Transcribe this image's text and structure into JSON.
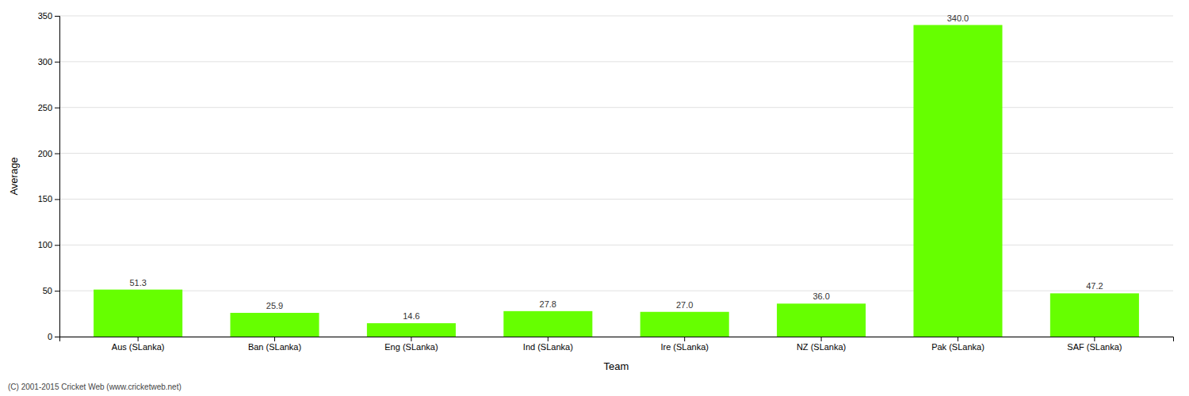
{
  "chart_data": {
    "type": "bar",
    "categories": [
      "Aus (SLanka)",
      "Ban (SLanka)",
      "Eng (SLanka)",
      "Ind (SLanka)",
      "Ire (SLanka)",
      "NZ (SLanka)",
      "Pak (SLanka)",
      "SAF (SLanka)"
    ],
    "values": [
      51.3,
      25.9,
      14.6,
      27.8,
      27.0,
      36.0,
      340.0,
      47.2
    ],
    "value_labels": [
      "51.3",
      "25.9",
      "14.6",
      "27.8",
      "27.0",
      "36.0",
      "340.0",
      "47.2"
    ],
    "data_labels": true,
    "color": "#66ff00",
    "xlabel": "Team",
    "ylabel": "Average",
    "ylim": [
      0,
      350
    ],
    "yticks": [
      0,
      50,
      100,
      150,
      200,
      250,
      300,
      350
    ],
    "grid": true,
    "annotations": [
      "(C) 2001-2015 Cricket Web (www.cricketweb.net)"
    ]
  }
}
